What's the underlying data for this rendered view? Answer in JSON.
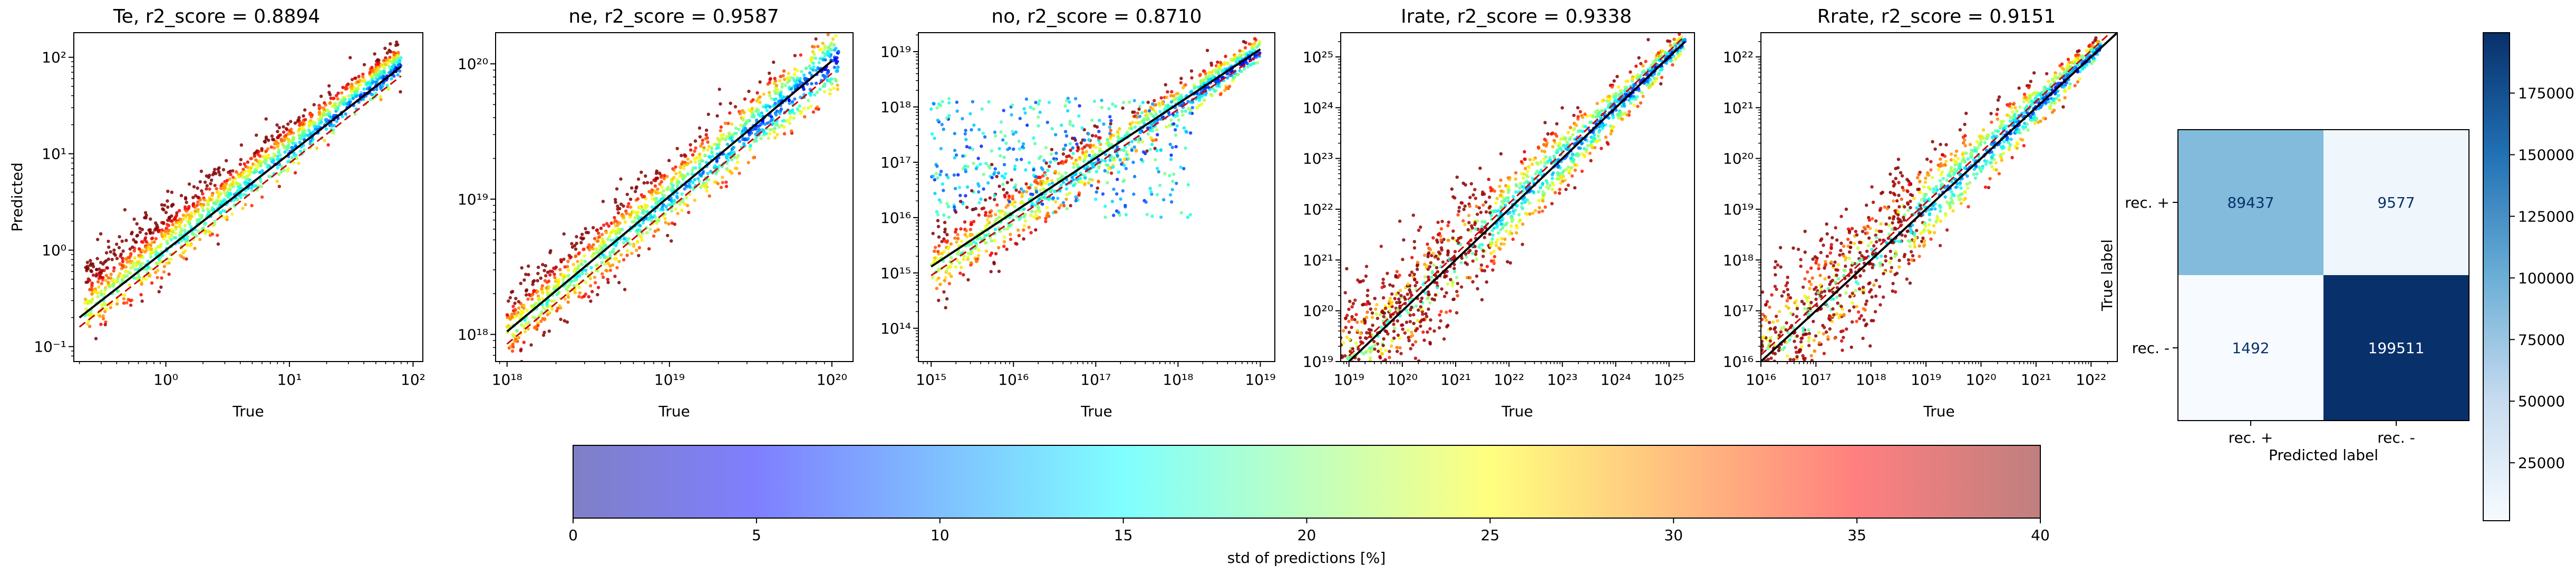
{
  "chart_data": [
    {
      "type": "scatter",
      "title": "Te, r2_score = 0.8894",
      "xlabel": "True",
      "ylabel": "Predicted",
      "xscale": "log",
      "yscale": "log",
      "xlim": [
        0.18,
        120
      ],
      "ylim": [
        0.07,
        180
      ],
      "x_ticks": [
        {
          "value": 1,
          "label": "10⁰"
        },
        {
          "value": 10,
          "label": "10¹"
        },
        {
          "value": 100,
          "label": "10²"
        }
      ],
      "y_ticks": [
        {
          "value": 0.1,
          "label": "10⁻¹"
        },
        {
          "value": 1,
          "label": "10⁰"
        },
        {
          "value": 10,
          "label": "10¹"
        },
        {
          "value": 100,
          "label": "10²"
        }
      ],
      "data_x_range": [
        0.22,
        80
      ],
      "fit_line": {
        "x": [
          0.2,
          80
        ],
        "y": [
          0.2,
          80
        ],
        "color": "#000000",
        "style": "solid"
      },
      "reference_line": {
        "x": [
          0.2,
          80
        ],
        "y": [
          0.16,
          64
        ],
        "color": "#d00000",
        "style": "dashed"
      },
      "band": {
        "center_offset": 0.15,
        "low_end_width": 0.35,
        "high_end_width": 0.15
      },
      "scatter_summary": "predicted vs true, colored by std of predictions [%]"
    },
    {
      "type": "scatter",
      "title": "ne, r2_score = 0.9587",
      "xlabel": "True",
      "ylabel": "",
      "xscale": "log",
      "yscale": "log",
      "xlim": [
        8.5e+17,
        1.35e+20
      ],
      "ylim": [
        6.3e+17,
        1.7e+20
      ],
      "x_ticks": [
        {
          "value": 1e+18,
          "label": "10¹⁸"
        },
        {
          "value": 1e+19,
          "label": "10¹⁹"
        },
        {
          "value": 1e+20,
          "label": "10²⁰"
        }
      ],
      "y_ticks": [
        {
          "value": 1e+18,
          "label": "10¹⁸"
        },
        {
          "value": 1e+19,
          "label": "10¹⁹"
        },
        {
          "value": 1e+20,
          "label": "10²⁰"
        }
      ],
      "data_x_range": [
        1e+18,
        1.1e+20
      ],
      "fit_line": {
        "x": [
          1e+18,
          1e+20
        ],
        "y": [
          1.05e+18,
          1.05e+20
        ],
        "color": "#000000",
        "style": "solid"
      },
      "reference_line": {
        "x": [
          1e+18,
          1e+20
        ],
        "y": [
          8.5e+17,
          8.5e+19
        ],
        "color": "#d00000",
        "style": "dashed"
      },
      "band": {
        "center_offset": 0.05,
        "low_end_width": 0.22,
        "high_end_width": 0.2
      },
      "scatter_summary": "predicted vs true, colored by std of predictions [%]"
    },
    {
      "type": "scatter",
      "title": "no, r2_score = 0.8710",
      "xlabel": "True",
      "ylabel": "",
      "xscale": "log",
      "yscale": "log",
      "xlim": [
        700000000000000.0,
        1.5e+19
      ],
      "ylim": [
        25000000000000.0,
        2.2e+19
      ],
      "x_ticks": [
        {
          "value": 1000000000000000.0,
          "label": "10¹⁵"
        },
        {
          "value": 1e+16,
          "label": "10¹⁶"
        },
        {
          "value": 1e+17,
          "label": "10¹⁷"
        },
        {
          "value": 1e+18,
          "label": "10¹⁸"
        },
        {
          "value": 1e+19,
          "label": "10¹⁹"
        }
      ],
      "y_ticks": [
        {
          "value": 100000000000000.0,
          "label": "10¹⁴"
        },
        {
          "value": 1000000000000000.0,
          "label": "10¹⁵"
        },
        {
          "value": 1e+16,
          "label": "10¹⁶"
        },
        {
          "value": 1e+17,
          "label": "10¹⁷"
        },
        {
          "value": 1e+18,
          "label": "10¹⁸"
        },
        {
          "value": 1e+19,
          "label": "10¹⁹"
        }
      ],
      "data_x_range": [
        1000000000000000.0,
        1e+19
      ],
      "fit_line": {
        "x": [
          1000000000000000.0,
          1e+19
        ],
        "y": [
          1300000000000000.0,
          1.1e+19
        ],
        "color": "#000000",
        "style": "solid"
      },
      "reference_line": {
        "x": [
          1000000000000000.0,
          1e+19
        ],
        "y": [
          900000000000000.0,
          9e+18
        ],
        "color": "#d00000",
        "style": "dashed"
      },
      "plateau_predicted": [
        1e+16,
        1.5e+18
      ],
      "band": {
        "center_offset": 0.1,
        "low_end_width": 0.6,
        "high_end_width": 0.2
      },
      "scatter_summary": "predicted vs true, colored by std of predictions [%]"
    },
    {
      "type": "scatter",
      "title": "Irate, r2_score = 0.9338",
      "xlabel": "True",
      "ylabel": "",
      "xscale": "log",
      "yscale": "log",
      "xlim": [
        7e+18,
        3e+25
      ],
      "ylim": [
        1e+19,
        3e+25
      ],
      "x_ticks": [
        {
          "value": 1e+19,
          "label": "10¹⁹"
        },
        {
          "value": 1e+20,
          "label": "10²⁰"
        },
        {
          "value": 1e+21,
          "label": "10²¹"
        },
        {
          "value": 1e+22,
          "label": "10²²"
        },
        {
          "value": 1e+23,
          "label": "10²³"
        },
        {
          "value": 1e+24,
          "label": "10²⁴"
        },
        {
          "value": 1e+25,
          "label": "10²⁵"
        }
      ],
      "y_ticks": [
        {
          "value": 1e+19,
          "label": "10¹⁹"
        },
        {
          "value": 1e+20,
          "label": "10²⁰"
        },
        {
          "value": 1e+21,
          "label": "10²¹"
        },
        {
          "value": 1e+22,
          "label": "10²²"
        },
        {
          "value": 1e+23,
          "label": "10²³"
        },
        {
          "value": 1e+24,
          "label": "10²⁴"
        },
        {
          "value": 1e+25,
          "label": "10²⁵"
        }
      ],
      "data_x_range": [
        7e+18,
        2e+25
      ],
      "fit_line": {
        "x": [
          1e+19,
          2e+25
        ],
        "y": [
          1e+19,
          2e+25
        ],
        "color": "#000000",
        "style": "solid"
      },
      "reference_line": {
        "x": [
          1e+19,
          2e+25
        ],
        "y": [
          1.3e+19,
          2.6e+25
        ],
        "color": "#d00000",
        "style": "dashed"
      },
      "band": {
        "center_offset": 0.05,
        "low_end_width": 1.3,
        "high_end_width": 0.15
      },
      "scatter_summary": "predicted vs true, colored by std of predictions [%]"
    },
    {
      "type": "scatter",
      "title": "Rrate, r2_score = 0.9151",
      "xlabel": "True",
      "ylabel": "",
      "xscale": "log",
      "yscale": "log",
      "xlim": [
        1e+16,
        3e+22
      ],
      "ylim": [
        1e+16,
        3e+22
      ],
      "x_ticks": [
        {
          "value": 1e+16,
          "label": "10¹⁶"
        },
        {
          "value": 1e+17,
          "label": "10¹⁷"
        },
        {
          "value": 1e+18,
          "label": "10¹⁸"
        },
        {
          "value": 1e+19,
          "label": "10¹⁹"
        },
        {
          "value": 1e+20,
          "label": "10²⁰"
        },
        {
          "value": 1e+21,
          "label": "10²¹"
        },
        {
          "value": 1e+22,
          "label": "10²²"
        }
      ],
      "y_ticks": [
        {
          "value": 1e+16,
          "label": "10¹⁶"
        },
        {
          "value": 1e+17,
          "label": "10¹⁷"
        },
        {
          "value": 1e+18,
          "label": "10¹⁸"
        },
        {
          "value": 1e+19,
          "label": "10¹⁹"
        },
        {
          "value": 1e+20,
          "label": "10²⁰"
        },
        {
          "value": 1e+21,
          "label": "10²¹"
        },
        {
          "value": 1e+22,
          "label": "10²²"
        }
      ],
      "data_x_range": [
        1e+16,
        1.5e+22
      ],
      "fit_line": {
        "x": [
          1e+16,
          3e+22
        ],
        "y": [
          1e+16,
          3e+22
        ],
        "color": "#000000",
        "style": "solid"
      },
      "reference_line": {
        "x": [
          1e+16,
          3e+22
        ],
        "y": [
          1.35e+16,
          4e+22
        ],
        "color": "#d00000",
        "style": "dashed"
      },
      "band": {
        "center_offset": 0.1,
        "low_end_width": 1.4,
        "high_end_width": 0.15
      },
      "scatter_summary": "predicted vs true, colored by std of predictions [%]"
    },
    {
      "type": "heatmap",
      "title": "",
      "xlabel": "Predicted label",
      "ylabel": "True label",
      "x_categories": [
        "rec. +",
        "rec. -"
      ],
      "y_categories": [
        "rec. +",
        "rec. -"
      ],
      "values": [
        [
          89437,
          9577
        ],
        [
          1492,
          199511
        ]
      ],
      "colormap": "Blues",
      "colorbar_ticks": [
        25000,
        50000,
        75000,
        100000,
        125000,
        150000,
        175000
      ],
      "colorbar_tick_labels": [
        "25000",
        "50000",
        "75000",
        "100000",
        "125000",
        "150000",
        "175000"
      ],
      "value_range": [
        1492,
        199511
      ]
    }
  ],
  "colorbar": {
    "label": "std of predictions [%]",
    "range": [
      0,
      40
    ],
    "ticks": [
      0,
      5,
      10,
      15,
      20,
      25,
      30,
      35,
      40
    ],
    "tick_labels": [
      "0",
      "5",
      "10",
      "15",
      "20",
      "25",
      "30",
      "35",
      "40"
    ],
    "colormap": "jet",
    "alpha": 0.5
  },
  "colors": {
    "fit_line": "#000000",
    "reference_line": "#d00000",
    "high_std": "#800000",
    "low_std": "#00008f"
  }
}
